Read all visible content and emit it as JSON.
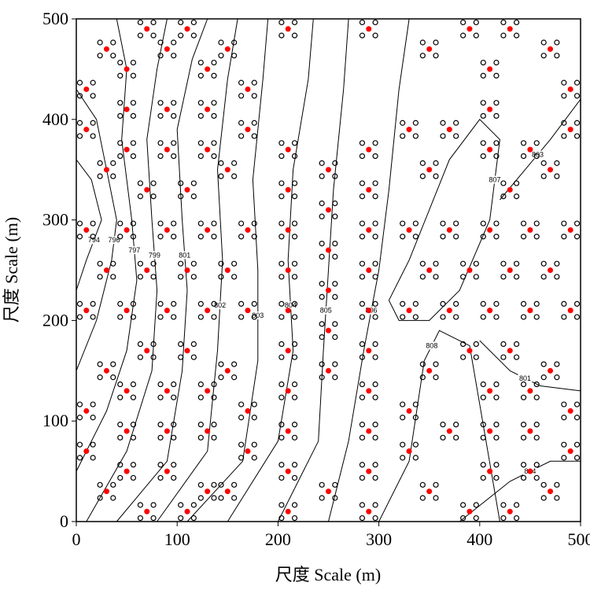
{
  "chart_data": {
    "type": "scatter",
    "xlabel": "尺度 Scale (m)",
    "ylabel": "尺度 Scale (m)",
    "xlim": [
      0,
      500
    ],
    "ylim": [
      0,
      500
    ],
    "xticks": [
      0,
      100,
      200,
      300,
      400,
      500
    ],
    "yticks": [
      0,
      100,
      200,
      300,
      400,
      500
    ],
    "series": [
      {
        "color": "#ff0000",
        "x": [
          70,
          110,
          210,
          290,
          390,
          430,
          30,
          90,
          150,
          350,
          470,
          50,
          130,
          410,
          10,
          170,
          490,
          50,
          90,
          130,
          410,
          10,
          170,
          330,
          370,
          490,
          50,
          90,
          130,
          210,
          290,
          410,
          450,
          30,
          150,
          250,
          350,
          470,
          70,
          110,
          210,
          290,
          430,
          250,
          10,
          50,
          90,
          130,
          170,
          210,
          290,
          330,
          370,
          410,
          450,
          490,
          250,
          30,
          70,
          110,
          150,
          210,
          290,
          350,
          390,
          430,
          470,
          250,
          10,
          50,
          90,
          130,
          170,
          210,
          290,
          330,
          370,
          410,
          450,
          490,
          250,
          70,
          110,
          210,
          290,
          390,
          430,
          30,
          150,
          250,
          350,
          470,
          50,
          90,
          130,
          210,
          290,
          410,
          450,
          10,
          170,
          330,
          490,
          50,
          90,
          130,
          210,
          290,
          370,
          410,
          450,
          10,
          170,
          330,
          490,
          50,
          90,
          210,
          290,
          410,
          450,
          30,
          130,
          150,
          250,
          350,
          470,
          70,
          110,
          210,
          290,
          390,
          430
        ],
        "y": [
          490,
          490,
          490,
          490,
          490,
          490,
          470,
          470,
          470,
          470,
          470,
          450,
          450,
          450,
          430,
          430,
          430,
          410,
          410,
          410,
          410,
          390,
          390,
          390,
          390,
          390,
          370,
          370,
          370,
          370,
          370,
          370,
          370,
          350,
          350,
          350,
          350,
          350,
          330,
          330,
          330,
          330,
          330,
          310,
          290,
          290,
          290,
          290,
          290,
          290,
          290,
          290,
          290,
          290,
          290,
          290,
          270,
          250,
          250,
          250,
          250,
          250,
          250,
          250,
          250,
          250,
          250,
          230,
          210,
          210,
          210,
          210,
          210,
          210,
          210,
          210,
          210,
          210,
          210,
          210,
          190,
          170,
          170,
          170,
          170,
          170,
          170,
          150,
          150,
          150,
          150,
          150,
          130,
          130,
          130,
          130,
          130,
          130,
          130,
          110,
          110,
          110,
          110,
          90,
          90,
          90,
          90,
          90,
          90,
          90,
          90,
          70,
          70,
          70,
          70,
          50,
          50,
          50,
          50,
          50,
          50,
          30,
          30,
          30,
          30,
          30,
          30,
          10,
          10,
          10,
          10,
          10,
          10
        ]
      }
    ],
    "contours": [
      {
        "level": 794,
        "x": [
          0,
          10,
          25,
          15,
          0
        ],
        "y": [
          230,
          260,
          300,
          340,
          360
        ]
      },
      {
        "level": 796,
        "x": [
          0,
          20,
          35,
          40,
          30,
          20,
          0
        ],
        "y": [
          150,
          200,
          260,
          300,
          350,
          400,
          430
        ]
      },
      {
        "level": 797,
        "x": [
          0,
          30,
          50,
          60,
          55,
          45,
          50,
          40
        ],
        "y": [
          50,
          110,
          170,
          240,
          300,
          380,
          450,
          500
        ]
      },
      {
        "level": 799,
        "x": [
          10,
          50,
          75,
          80,
          75,
          70,
          80,
          90
        ],
        "y": [
          0,
          70,
          150,
          230,
          300,
          380,
          450,
          500
        ]
      },
      {
        "level": 801,
        "x": [
          40,
          90,
          105,
          110,
          105,
          100,
          115,
          130
        ],
        "y": [
          0,
          60,
          150,
          230,
          300,
          390,
          460,
          500
        ]
      },
      {
        "level": 802,
        "x": [
          80,
          130,
          140,
          145,
          140,
          150,
          160
        ],
        "y": [
          0,
          70,
          170,
          260,
          350,
          440,
          500
        ]
      },
      {
        "level": 803,
        "x": [
          110,
          165,
          180,
          180,
          175,
          185,
          190
        ],
        "y": [
          0,
          60,
          160,
          250,
          340,
          440,
          500
        ]
      },
      {
        "level": 804,
        "x": [
          150,
          200,
          215,
          210,
          215,
          230,
          235
        ],
        "y": [
          0,
          80,
          170,
          260,
          350,
          440,
          500
        ]
      },
      {
        "level": 805,
        "x": [
          200,
          240,
          245,
          250,
          255,
          265,
          270
        ],
        "y": [
          0,
          80,
          170,
          250,
          330,
          430,
          500
        ]
      },
      {
        "level": 806,
        "x": [
          250,
          270,
          285,
          300,
          310,
          320,
          330
        ],
        "y": [
          0,
          80,
          170,
          250,
          330,
          430,
          500
        ]
      },
      {
        "level": 807,
        "x": [
          310,
          330,
          370,
          400,
          420,
          410,
          380,
          350,
          320,
          310
        ],
        "y": [
          220,
          260,
          360,
          400,
          380,
          300,
          230,
          200,
          200,
          220
        ]
      },
      {
        "level": 808,
        "x": [
          300,
          330,
          345,
          360,
          390,
          420
        ],
        "y": [
          0,
          60,
          160,
          190,
          175,
          0
        ]
      },
      {
        "level": 803,
        "x": [
          420,
          445,
          470,
          500
        ],
        "y": [
          320,
          350,
          380,
          420
        ]
      },
      {
        "level": 801,
        "x": [
          400,
          430,
          460,
          500
        ],
        "y": [
          180,
          150,
          135,
          130
        ]
      },
      {
        "level": 804,
        "x": [
          380,
          430,
          470,
          500
        ],
        "y": [
          0,
          40,
          60,
          60
        ]
      }
    ]
  }
}
